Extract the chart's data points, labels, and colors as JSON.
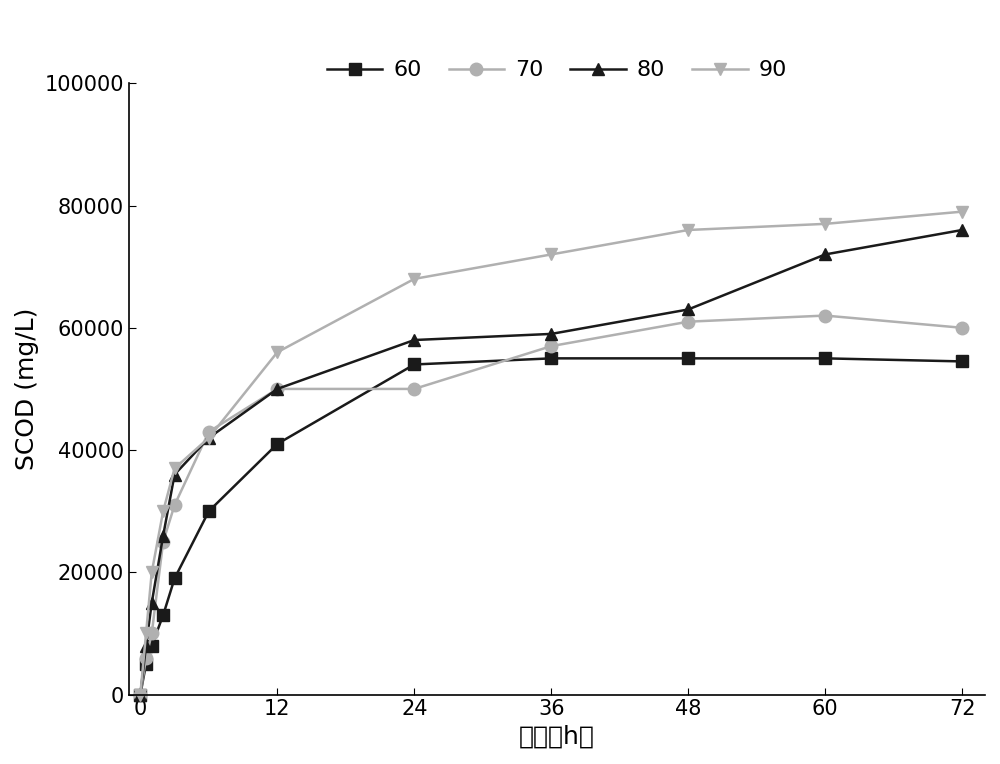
{
  "x": [
    0,
    0.5,
    1,
    2,
    3,
    6,
    12,
    24,
    36,
    48,
    60,
    72
  ],
  "series_60": [
    0,
    5000,
    8000,
    13000,
    19000,
    30000,
    41000,
    54000,
    55000,
    55000,
    55000,
    54500
  ],
  "series_70": [
    0,
    6000,
    10000,
    25000,
    31000,
    43000,
    50000,
    50000,
    57000,
    61000,
    62000,
    60000
  ],
  "series_80": [
    0,
    8000,
    15000,
    26000,
    36000,
    42000,
    50000,
    58000,
    59000,
    63000,
    72000,
    76000
  ],
  "series_90": [
    0,
    10000,
    20000,
    30000,
    37000,
    42000,
    56000,
    68000,
    72000,
    76000,
    77000,
    79000
  ],
  "color_60": "#1a1a1a",
  "color_70": "#b0b0b0",
  "color_80": "#1a1a1a",
  "color_90": "#b0b0b0",
  "marker_60": "s",
  "marker_70": "o",
  "marker_80": "^",
  "marker_90": "v",
  "label_60": "60",
  "label_70": "70",
  "label_80": "80",
  "label_90": "90",
  "ylabel": "SCOD (mg/L)",
  "xlabel": "时间（h）",
  "ylim": [
    0,
    100000
  ],
  "xlim": [
    -1,
    74
  ],
  "yticks": [
    0,
    20000,
    40000,
    60000,
    80000,
    100000
  ],
  "xticks": [
    0,
    12,
    24,
    36,
    48,
    60,
    72
  ],
  "axis_fontsize": 18,
  "tick_fontsize": 15,
  "legend_fontsize": 16,
  "linewidth": 1.8,
  "markersize": 9,
  "background_color": "#ffffff",
  "figwidth": 10.0,
  "figheight": 7.64
}
